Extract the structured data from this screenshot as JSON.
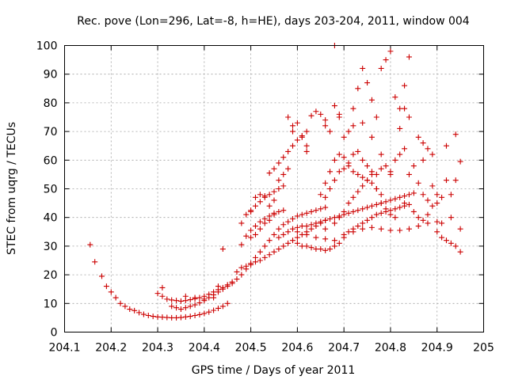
{
  "chart_data": {
    "type": "scatter",
    "title": "Rec. pove (Lon=296, Lat=-8, h=HE), days 203-204, 2011, window 004",
    "xlabel": "GPS time / Days of year 2011",
    "ylabel": "STEC from uqrg / TECUs",
    "xlim": [
      204.1,
      205
    ],
    "ylim": [
      0,
      100
    ],
    "xticks": [
      "204.1",
      "204.2",
      "204.3",
      "204.4",
      "204.5",
      "204.6",
      "204.7",
      "204.8",
      "204.9",
      "205"
    ],
    "yticks": [
      "0",
      "10",
      "20",
      "30",
      "40",
      "50",
      "60",
      "70",
      "80",
      "90",
      "100"
    ],
    "grid": true,
    "marker": "plus",
    "color": "#cc0000",
    "points": [
      [
        204.155,
        30.5
      ],
      [
        204.165,
        24.5
      ],
      [
        204.18,
        19.5
      ],
      [
        204.19,
        16
      ],
      [
        204.2,
        14
      ],
      [
        204.21,
        12
      ],
      [
        204.22,
        10
      ],
      [
        204.23,
        9
      ],
      [
        204.24,
        8
      ],
      [
        204.25,
        7.5
      ],
      [
        204.26,
        6.8
      ],
      [
        204.27,
        6.2
      ],
      [
        204.28,
        5.8
      ],
      [
        204.29,
        5.5
      ],
      [
        204.3,
        5.3
      ],
      [
        204.31,
        5.2
      ],
      [
        204.32,
        5.1
      ],
      [
        204.33,
        5.0
      ],
      [
        204.34,
        5.0
      ],
      [
        204.35,
        5.1
      ],
      [
        204.36,
        5.3
      ],
      [
        204.37,
        5.5
      ],
      [
        204.38,
        5.8
      ],
      [
        204.39,
        6.1
      ],
      [
        204.4,
        6.5
      ],
      [
        204.41,
        7.0
      ],
      [
        204.42,
        7.6
      ],
      [
        204.43,
        8.3
      ],
      [
        204.44,
        9.0
      ],
      [
        204.45,
        10.0
      ],
      [
        204.3,
        13.5
      ],
      [
        204.31,
        15.5
      ],
      [
        204.31,
        12.5
      ],
      [
        204.32,
        11.5
      ],
      [
        204.33,
        11.2
      ],
      [
        204.34,
        11.0
      ],
      [
        204.35,
        10.8
      ],
      [
        204.36,
        11.0
      ],
      [
        204.37,
        11.3
      ],
      [
        204.38,
        11.6
      ],
      [
        204.39,
        12.0
      ],
      [
        204.4,
        12.5
      ],
      [
        204.41,
        13.2
      ],
      [
        204.42,
        14.0
      ],
      [
        204.43,
        14.8
      ],
      [
        204.44,
        15.5
      ],
      [
        204.45,
        16.5
      ],
      [
        204.46,
        17.5
      ],
      [
        204.47,
        18.5
      ],
      [
        204.48,
        20
      ],
      [
        204.49,
        22
      ],
      [
        204.5,
        24
      ],
      [
        204.51,
        26
      ],
      [
        204.52,
        28
      ],
      [
        204.53,
        30
      ],
      [
        204.54,
        32
      ],
      [
        204.55,
        34
      ],
      [
        204.56,
        36
      ],
      [
        204.57,
        37.5
      ],
      [
        204.58,
        38.5
      ],
      [
        204.59,
        39.5
      ],
      [
        204.6,
        40.5
      ],
      [
        204.61,
        41
      ],
      [
        204.62,
        41.5
      ],
      [
        204.63,
        42
      ],
      [
        204.64,
        42.5
      ],
      [
        204.65,
        43
      ],
      [
        204.66,
        43.5
      ],
      [
        204.33,
        9
      ],
      [
        204.34,
        8.5
      ],
      [
        204.35,
        8
      ],
      [
        204.36,
        8.5
      ],
      [
        204.37,
        9.0
      ],
      [
        204.38,
        9.5
      ],
      [
        204.39,
        10.2
      ],
      [
        204.4,
        11
      ],
      [
        204.41,
        12
      ],
      [
        204.42,
        13
      ],
      [
        204.43,
        14
      ],
      [
        204.44,
        15
      ],
      [
        204.45,
        16
      ],
      [
        204.46,
        17
      ],
      [
        204.36,
        12.5
      ],
      [
        204.38,
        12
      ],
      [
        204.4,
        11.5
      ],
      [
        204.42,
        12
      ],
      [
        204.43,
        16
      ],
      [
        204.44,
        29
      ],
      [
        204.47,
        21
      ],
      [
        204.48,
        22.5
      ],
      [
        204.49,
        23
      ],
      [
        204.5,
        23.5
      ],
      [
        204.51,
        24.5
      ],
      [
        204.52,
        25
      ],
      [
        204.53,
        26
      ],
      [
        204.54,
        27
      ],
      [
        204.55,
        28
      ],
      [
        204.56,
        29
      ],
      [
        204.57,
        30
      ],
      [
        204.58,
        31
      ],
      [
        204.59,
        32
      ],
      [
        204.6,
        33
      ],
      [
        204.61,
        34
      ],
      [
        204.62,
        35
      ],
      [
        204.63,
        36
      ],
      [
        204.64,
        37
      ],
      [
        204.65,
        38
      ],
      [
        204.66,
        39
      ],
      [
        204.48,
        30.5
      ],
      [
        204.49,
        33.5
      ],
      [
        204.5,
        35.5
      ],
      [
        204.51,
        37
      ],
      [
        204.52,
        38.5
      ],
      [
        204.53,
        39.5
      ],
      [
        204.54,
        40.5
      ],
      [
        204.55,
        41.5
      ],
      [
        204.56,
        42
      ],
      [
        204.57,
        42.5
      ],
      [
        204.48,
        38
      ],
      [
        204.49,
        41
      ],
      [
        204.5,
        42.5
      ],
      [
        204.51,
        44
      ],
      [
        204.52,
        45.5
      ],
      [
        204.53,
        47
      ],
      [
        204.54,
        48
      ],
      [
        204.55,
        49
      ],
      [
        204.56,
        50
      ],
      [
        204.57,
        51
      ],
      [
        204.5,
        42
      ],
      [
        204.51,
        47
      ],
      [
        204.52,
        48
      ],
      [
        204.53,
        47.5
      ],
      [
        204.54,
        55.5
      ],
      [
        204.55,
        57
      ],
      [
        204.56,
        59
      ],
      [
        204.57,
        61
      ],
      [
        204.58,
        63
      ],
      [
        204.59,
        65
      ],
      [
        204.6,
        67
      ],
      [
        204.61,
        68.5
      ],
      [
        204.62,
        70
      ],
      [
        204.54,
        44
      ],
      [
        204.55,
        46
      ],
      [
        204.56,
        53
      ],
      [
        204.57,
        55
      ],
      [
        204.58,
        57
      ],
      [
        204.58,
        75
      ],
      [
        204.59,
        72
      ],
      [
        204.59,
        70
      ],
      [
        204.6,
        73
      ],
      [
        204.61,
        68
      ],
      [
        204.62,
        65
      ],
      [
        204.62,
        63
      ],
      [
        204.63,
        75.5
      ],
      [
        204.64,
        77
      ],
      [
        204.65,
        76
      ],
      [
        204.66,
        74
      ],
      [
        204.66,
        72
      ],
      [
        204.67,
        70
      ],
      [
        204.68,
        79
      ],
      [
        204.69,
        76
      ],
      [
        204.69,
        75
      ],
      [
        204.5,
        33
      ],
      [
        204.51,
        34
      ],
      [
        204.52,
        36
      ],
      [
        204.53,
        38
      ],
      [
        204.54,
        39
      ],
      [
        204.55,
        41
      ],
      [
        204.56,
        33
      ],
      [
        204.57,
        34
      ],
      [
        204.58,
        35
      ],
      [
        204.59,
        36
      ],
      [
        204.6,
        36.5
      ],
      [
        204.61,
        37
      ],
      [
        204.62,
        37
      ],
      [
        204.63,
        37.5
      ],
      [
        204.64,
        38
      ],
      [
        204.65,
        38.5
      ],
      [
        204.66,
        39
      ],
      [
        204.67,
        39.5
      ],
      [
        204.68,
        40
      ],
      [
        204.69,
        40.5
      ],
      [
        204.7,
        41
      ],
      [
        204.71,
        41.5
      ],
      [
        204.72,
        42
      ],
      [
        204.73,
        42.5
      ],
      [
        204.74,
        43
      ],
      [
        204.75,
        43.5
      ],
      [
        204.76,
        44
      ],
      [
        204.77,
        44.5
      ],
      [
        204.78,
        45
      ],
      [
        204.79,
        45.5
      ],
      [
        204.8,
        46
      ],
      [
        204.81,
        46.5
      ],
      [
        204.82,
        47
      ],
      [
        204.83,
        47.5
      ],
      [
        204.84,
        48
      ],
      [
        204.85,
        48.5
      ],
      [
        204.6,
        31
      ],
      [
        204.61,
        30
      ],
      [
        204.62,
        30
      ],
      [
        204.63,
        29.5
      ],
      [
        204.64,
        29
      ],
      [
        204.65,
        29
      ],
      [
        204.66,
        28.5
      ],
      [
        204.67,
        29
      ],
      [
        204.68,
        30
      ],
      [
        204.69,
        31
      ],
      [
        204.7,
        33
      ],
      [
        204.71,
        35
      ],
      [
        204.72,
        36
      ],
      [
        204.73,
        37
      ],
      [
        204.74,
        38
      ],
      [
        204.75,
        39
      ],
      [
        204.76,
        40
      ],
      [
        204.77,
        41
      ],
      [
        204.78,
        41.5
      ],
      [
        204.79,
        42
      ],
      [
        204.8,
        42.5
      ],
      [
        204.81,
        43
      ],
      [
        204.82,
        43.5
      ],
      [
        204.83,
        44
      ],
      [
        204.84,
        44.5
      ],
      [
        204.6,
        35
      ],
      [
        204.62,
        34
      ],
      [
        204.64,
        33
      ],
      [
        204.66,
        32.5
      ],
      [
        204.68,
        32
      ],
      [
        204.7,
        34
      ],
      [
        204.72,
        35
      ],
      [
        204.74,
        36
      ],
      [
        204.76,
        36.5
      ],
      [
        204.78,
        36
      ],
      [
        204.8,
        35.5
      ],
      [
        204.82,
        35.5
      ],
      [
        204.84,
        36
      ],
      [
        204.86,
        37
      ],
      [
        204.88,
        38
      ],
      [
        204.9,
        38.5
      ],
      [
        204.65,
        48
      ],
      [
        204.66,
        52
      ],
      [
        204.67,
        56
      ],
      [
        204.68,
        60
      ],
      [
        204.69,
        62
      ],
      [
        204.7,
        61
      ],
      [
        204.71,
        58
      ],
      [
        204.72,
        56
      ],
      [
        204.73,
        55
      ],
      [
        204.74,
        54
      ],
      [
        204.75,
        53
      ],
      [
        204.76,
        52
      ],
      [
        204.77,
        50
      ],
      [
        204.78,
        48
      ],
      [
        204.66,
        47
      ],
      [
        204.67,
        50
      ],
      [
        204.68,
        53
      ],
      [
        204.69,
        56
      ],
      [
        204.7,
        57
      ],
      [
        204.71,
        59
      ],
      [
        204.72,
        62
      ],
      [
        204.73,
        63
      ],
      [
        204.74,
        60
      ],
      [
        204.75,
        58
      ],
      [
        204.76,
        56
      ],
      [
        204.77,
        55
      ],
      [
        204.78,
        57
      ],
      [
        204.79,
        58
      ],
      [
        204.8,
        56
      ],
      [
        204.81,
        60
      ],
      [
        204.82,
        62
      ],
      [
        204.83,
        64
      ],
      [
        204.66,
        36
      ],
      [
        204.68,
        38
      ],
      [
        204.69,
        40
      ],
      [
        204.7,
        42
      ],
      [
        204.71,
        45
      ],
      [
        204.72,
        47
      ],
      [
        204.73,
        49
      ],
      [
        204.74,
        51
      ],
      [
        204.75,
        53
      ],
      [
        204.76,
        55
      ],
      [
        204.77,
        50
      ],
      [
        204.78,
        45
      ],
      [
        204.79,
        43
      ],
      [
        204.8,
        41
      ],
      [
        204.68,
        100
      ],
      [
        204.7,
        68
      ],
      [
        204.71,
        70
      ],
      [
        204.72,
        78
      ],
      [
        204.73,
        85
      ],
      [
        204.74,
        92
      ],
      [
        204.75,
        87
      ],
      [
        204.76,
        81
      ],
      [
        204.77,
        75
      ],
      [
        204.78,
        92
      ],
      [
        204.79,
        95
      ],
      [
        204.8,
        98
      ],
      [
        204.81,
        82
      ],
      [
        204.82,
        78
      ],
      [
        204.83,
        86
      ],
      [
        204.84,
        96
      ],
      [
        204.84,
        75
      ],
      [
        204.86,
        68
      ],
      [
        204.87,
        66
      ],
      [
        204.88,
        64
      ],
      [
        204.89,
        62
      ],
      [
        204.72,
        72
      ],
      [
        204.74,
        73
      ],
      [
        204.76,
        68
      ],
      [
        204.78,
        62
      ],
      [
        204.8,
        55
      ],
      [
        204.82,
        71
      ],
      [
        204.83,
        78
      ],
      [
        204.84,
        55
      ],
      [
        204.86,
        52
      ],
      [
        204.87,
        48
      ],
      [
        204.88,
        46
      ],
      [
        204.89,
        51
      ],
      [
        204.9,
        48
      ],
      [
        204.91,
        47
      ],
      [
        204.85,
        42
      ],
      [
        204.86,
        40
      ],
      [
        204.87,
        39
      ],
      [
        204.88,
        41
      ],
      [
        204.89,
        44
      ],
      [
        204.9,
        45
      ],
      [
        204.91,
        38
      ],
      [
        204.92,
        53
      ],
      [
        204.93,
        48
      ],
      [
        204.94,
        53
      ],
      [
        204.92,
        65
      ],
      [
        204.94,
        69
      ],
      [
        204.95,
        59.5
      ],
      [
        204.9,
        35
      ],
      [
        204.91,
        33
      ],
      [
        204.92,
        32
      ],
      [
        204.93,
        31
      ],
      [
        204.94,
        30
      ],
      [
        204.95,
        28
      ],
      [
        204.95,
        36
      ],
      [
        204.93,
        40
      ],
      [
        204.87,
        60
      ],
      [
        204.85,
        58
      ],
      [
        204.83,
        45
      ],
      [
        204.81,
        40
      ]
    ]
  }
}
